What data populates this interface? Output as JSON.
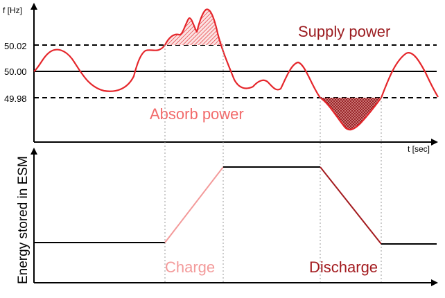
{
  "axes": {
    "freq_label": "f [Hz]",
    "time_label": "t [sec]",
    "energy_label": "Energy stored in ESM"
  },
  "freq_levels": {
    "upper": "50.02",
    "nominal": "50.00",
    "lower": "49.98"
  },
  "annotations": {
    "supply": "Supply power",
    "absorb": "Absorb power",
    "charge": "Charge",
    "discharge": "Discharge"
  },
  "colors": {
    "frequency_curve": "#e5262b",
    "supply_text": "#9b1b1f",
    "absorb_text": "#f26b6b",
    "charge_segment": "#f39a9a",
    "discharge_segment": "#a31a1e",
    "energy_line": "#000000"
  }
}
